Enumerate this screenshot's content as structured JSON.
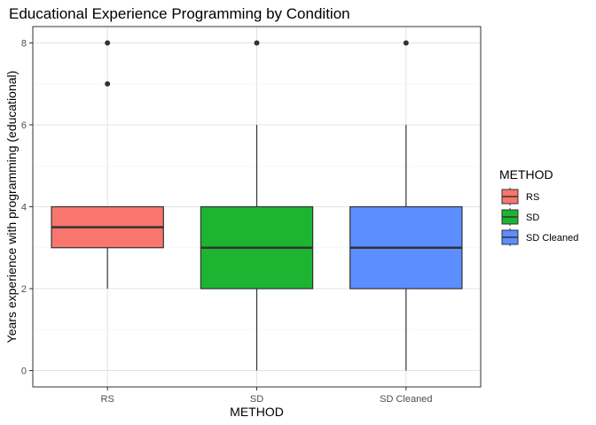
{
  "chart_data": {
    "type": "boxplot",
    "title": "Educational Experience Programming by Condition",
    "xlabel": "METHOD",
    "ylabel": "Years experience with programming (educational)",
    "categories": [
      "RS",
      "SD",
      "SD Cleaned"
    ],
    "ylim": [
      -0.4,
      8.4
    ],
    "yticks": [
      0,
      2,
      4,
      6,
      8
    ],
    "grid": true,
    "legend": {
      "title": "METHOD",
      "position": "right",
      "entries": [
        "RS",
        "SD",
        "SD Cleaned"
      ]
    },
    "colors": [
      "#F8766D",
      "#1DB431",
      "#5C8EFF"
    ],
    "boxes": [
      {
        "category": "RS",
        "lower_whisker": 2,
        "q1": 3,
        "median": 3.5,
        "q3": 4,
        "upper_whisker": 4,
        "outliers": [
          7,
          8
        ]
      },
      {
        "category": "SD",
        "lower_whisker": 0,
        "q1": 2,
        "median": 3,
        "q3": 4,
        "upper_whisker": 6,
        "outliers": [
          8
        ]
      },
      {
        "category": "SD Cleaned",
        "lower_whisker": 0,
        "q1": 2,
        "median": 3,
        "q3": 4,
        "upper_whisker": 6,
        "outliers": [
          8
        ]
      }
    ]
  }
}
